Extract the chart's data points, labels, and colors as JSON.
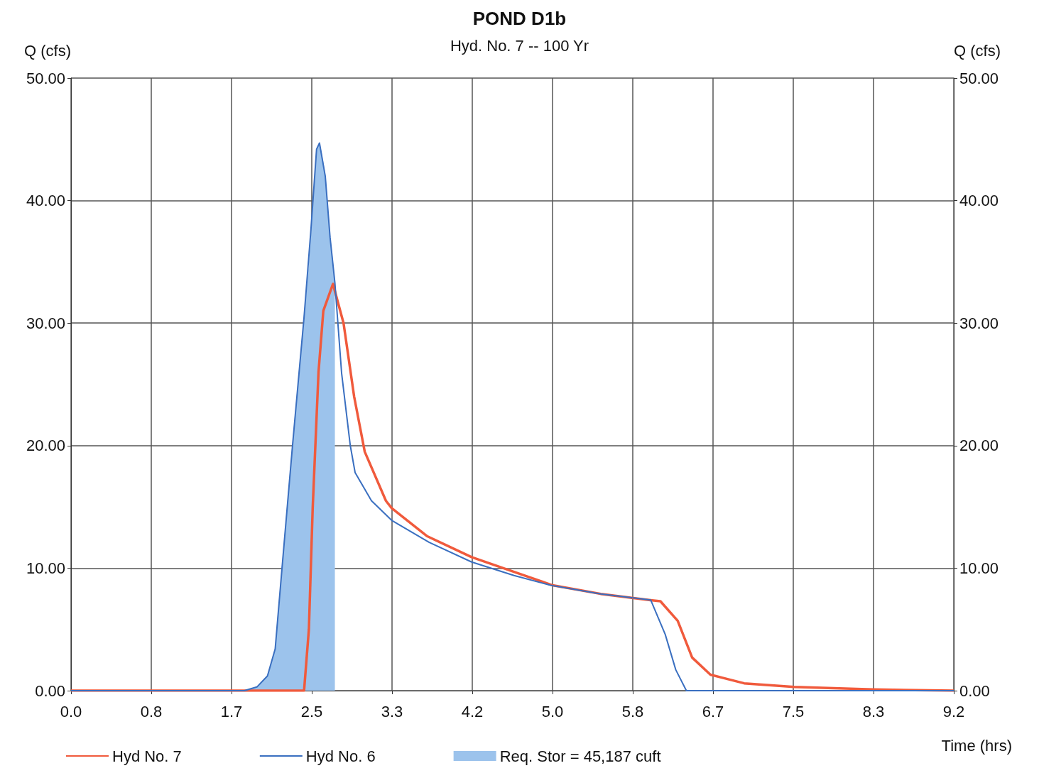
{
  "chart_data": {
    "type": "line",
    "title": "POND D1b",
    "subtitle": "Hyd. No. 7 -- 100 Yr",
    "xlabel": "Time (hrs)",
    "ylabel": "Q (cfs)",
    "y2label": "Q (cfs)",
    "xlim": [
      0,
      9.1667
    ],
    "xticks": [
      {
        "value": 0,
        "label": "0.0"
      },
      {
        "value": 0.8333,
        "label": "0.8"
      },
      {
        "value": 1.6667,
        "label": "1.7"
      },
      {
        "value": 2.5,
        "label": "2.5"
      },
      {
        "value": 3.3333,
        "label": "3.3"
      },
      {
        "value": 4.1667,
        "label": "4.2"
      },
      {
        "value": 5.0,
        "label": "5.0"
      },
      {
        "value": 5.8333,
        "label": "5.8"
      },
      {
        "value": 6.6667,
        "label": "6.7"
      },
      {
        "value": 7.5,
        "label": "7.5"
      },
      {
        "value": 8.3333,
        "label": "8.3"
      },
      {
        "value": 9.1667,
        "label": "9.2"
      }
    ],
    "ylim": [
      0,
      50
    ],
    "yticks": [
      {
        "value": 0,
        "label": "0.00"
      },
      {
        "value": 10,
        "label": "10.00"
      },
      {
        "value": 20,
        "label": "20.00"
      },
      {
        "value": 30,
        "label": "30.00"
      },
      {
        "value": 40,
        "label": "40.00"
      },
      {
        "value": 50,
        "label": "50.00"
      }
    ],
    "y2lim": [
      0,
      50
    ],
    "y2ticks": [
      {
        "value": 0,
        "label": "0.00"
      },
      {
        "value": 10,
        "label": "10.00"
      },
      {
        "value": 20,
        "label": "20.00"
      },
      {
        "value": 30,
        "label": "30.00"
      },
      {
        "value": 40,
        "label": "40.00"
      },
      {
        "value": 50,
        "label": "50.00"
      }
    ],
    "grid": true,
    "legend": "bottom",
    "series": [
      {
        "name": "Hyd No. 7",
        "color": "#f05a3c",
        "x": [
          0,
          2.42,
          2.47,
          2.51,
          2.57,
          2.62,
          2.72,
          2.83,
          2.94,
          3.05,
          3.27,
          3.33,
          3.7,
          4.16,
          4.6,
          5.0,
          5.5,
          6.0,
          6.12,
          6.3,
          6.45,
          6.64,
          6.99,
          7.51,
          8.33,
          9.1667
        ],
        "values": [
          0,
          0,
          5,
          15,
          26,
          31,
          33.2,
          30,
          24,
          19.5,
          15.5,
          14.9,
          12.6,
          10.9,
          9.7,
          8.6,
          7.9,
          7.4,
          7.3,
          5.7,
          2.7,
          1.3,
          0.6,
          0.3,
          0.1,
          0
        ]
      },
      {
        "name": "Hyd No. 6",
        "color": "#3a6fc0",
        "x": [
          0,
          1.8,
          1.93,
          2.04,
          2.12,
          2.19,
          2.3,
          2.42,
          2.49,
          2.55,
          2.58,
          2.64,
          2.69,
          2.74,
          2.81,
          2.9,
          2.95,
          3.12,
          3.33,
          3.72,
          4.16,
          4.6,
          4.98,
          5.5,
          6.02,
          6.17,
          6.28,
          6.39,
          9.1667
        ],
        "values": [
          0,
          0,
          0.3,
          1.2,
          3.4,
          9.9,
          20,
          30.5,
          37.5,
          44.2,
          44.7,
          42,
          37,
          33.3,
          25.9,
          20,
          17.8,
          15.5,
          13.9,
          12.1,
          10.5,
          9.4,
          8.6,
          7.9,
          7.4,
          4.6,
          1.7,
          0,
          0
        ]
      },
      {
        "name": "Req. Stor = 45,187 cuft",
        "type": "area",
        "color": "#9cc3ec",
        "x": [
          1.8,
          1.93,
          2.04,
          2.12,
          2.19,
          2.3,
          2.42,
          2.47,
          2.51,
          2.55,
          2.58,
          2.62,
          2.64,
          2.69,
          2.74
        ],
        "values": [
          0,
          0.3,
          1.2,
          3.4,
          9.9,
          20,
          30.5,
          34.5,
          39,
          44.2,
          44.7,
          43,
          42,
          37,
          33.3
        ]
      }
    ]
  }
}
